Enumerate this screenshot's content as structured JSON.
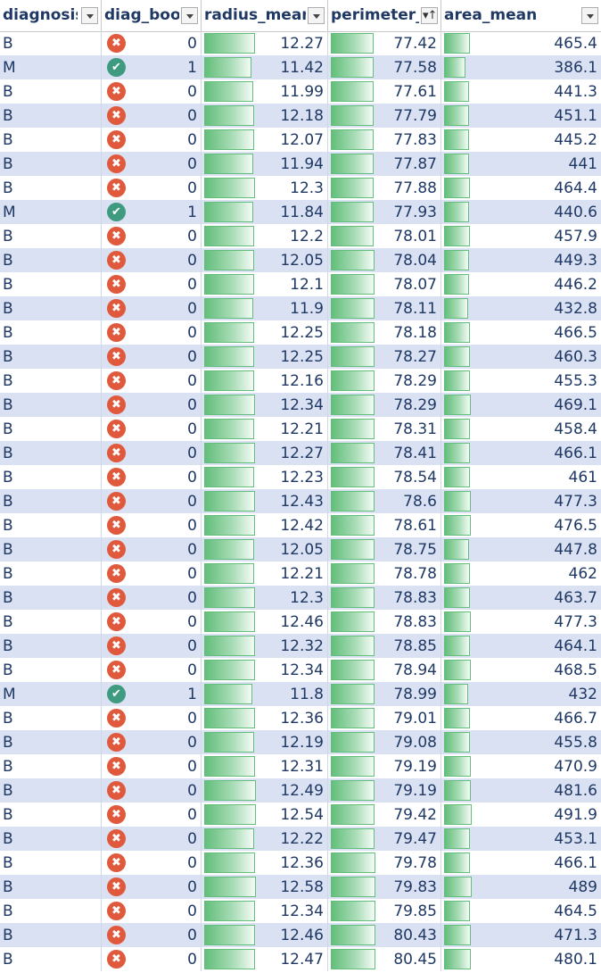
{
  "columns": [
    "diagnosis",
    "diag_boo",
    "radius_mean",
    "perimeter_",
    "area_mean"
  ],
  "sort_column": "perimeter_",
  "colors": {
    "band": "#d9e1f2",
    "text": "#1f3864",
    "false_icon": "#e0593c",
    "true_icon": "#3e9b7f",
    "bar": "#63be7b"
  },
  "icons": {
    "false": "x-circle-icon",
    "true": "check-circle-icon"
  },
  "data_bar_ranges": {
    "radius_mean": [
      0,
      12.58
    ],
    "perimeter_mean": [
      0,
      80.45
    ],
    "area_mean": [
      0,
      491.9
    ]
  },
  "rows": [
    {
      "diagnosis": "B",
      "diag_bool": "0",
      "radius_mean": "12.27",
      "perimeter_mean": "77.42",
      "area_mean": "465.4"
    },
    {
      "diagnosis": "M",
      "diag_bool": "1",
      "radius_mean": "11.42",
      "perimeter_mean": "77.58",
      "area_mean": "386.1"
    },
    {
      "diagnosis": "B",
      "diag_bool": "0",
      "radius_mean": "11.99",
      "perimeter_mean": "77.61",
      "area_mean": "441.3"
    },
    {
      "diagnosis": "B",
      "diag_bool": "0",
      "radius_mean": "12.18",
      "perimeter_mean": "77.79",
      "area_mean": "451.1"
    },
    {
      "diagnosis": "B",
      "diag_bool": "0",
      "radius_mean": "12.07",
      "perimeter_mean": "77.83",
      "area_mean": "445.2"
    },
    {
      "diagnosis": "B",
      "diag_bool": "0",
      "radius_mean": "11.94",
      "perimeter_mean": "77.87",
      "area_mean": "441"
    },
    {
      "diagnosis": "B",
      "diag_bool": "0",
      "radius_mean": "12.3",
      "perimeter_mean": "77.88",
      "area_mean": "464.4"
    },
    {
      "diagnosis": "M",
      "diag_bool": "1",
      "radius_mean": "11.84",
      "perimeter_mean": "77.93",
      "area_mean": "440.6"
    },
    {
      "diagnosis": "B",
      "diag_bool": "0",
      "radius_mean": "12.2",
      "perimeter_mean": "78.01",
      "area_mean": "457.9"
    },
    {
      "diagnosis": "B",
      "diag_bool": "0",
      "radius_mean": "12.05",
      "perimeter_mean": "78.04",
      "area_mean": "449.3"
    },
    {
      "diagnosis": "B",
      "diag_bool": "0",
      "radius_mean": "12.1",
      "perimeter_mean": "78.07",
      "area_mean": "446.2"
    },
    {
      "diagnosis": "B",
      "diag_bool": "0",
      "radius_mean": "11.9",
      "perimeter_mean": "78.11",
      "area_mean": "432.8"
    },
    {
      "diagnosis": "B",
      "diag_bool": "0",
      "radius_mean": "12.25",
      "perimeter_mean": "78.18",
      "area_mean": "466.5"
    },
    {
      "diagnosis": "B",
      "diag_bool": "0",
      "radius_mean": "12.25",
      "perimeter_mean": "78.27",
      "area_mean": "460.3"
    },
    {
      "diagnosis": "B",
      "diag_bool": "0",
      "radius_mean": "12.16",
      "perimeter_mean": "78.29",
      "area_mean": "455.3"
    },
    {
      "diagnosis": "B",
      "diag_bool": "0",
      "radius_mean": "12.34",
      "perimeter_mean": "78.29",
      "area_mean": "469.1"
    },
    {
      "diagnosis": "B",
      "diag_bool": "0",
      "radius_mean": "12.21",
      "perimeter_mean": "78.31",
      "area_mean": "458.4"
    },
    {
      "diagnosis": "B",
      "diag_bool": "0",
      "radius_mean": "12.27",
      "perimeter_mean": "78.41",
      "area_mean": "466.1"
    },
    {
      "diagnosis": "B",
      "diag_bool": "0",
      "radius_mean": "12.23",
      "perimeter_mean": "78.54",
      "area_mean": "461"
    },
    {
      "diagnosis": "B",
      "diag_bool": "0",
      "radius_mean": "12.43",
      "perimeter_mean": "78.6",
      "area_mean": "477.3"
    },
    {
      "diagnosis": "B",
      "diag_bool": "0",
      "radius_mean": "12.42",
      "perimeter_mean": "78.61",
      "area_mean": "476.5"
    },
    {
      "diagnosis": "B",
      "diag_bool": "0",
      "radius_mean": "12.05",
      "perimeter_mean": "78.75",
      "area_mean": "447.8"
    },
    {
      "diagnosis": "B",
      "diag_bool": "0",
      "radius_mean": "12.21",
      "perimeter_mean": "78.78",
      "area_mean": "462"
    },
    {
      "diagnosis": "B",
      "diag_bool": "0",
      "radius_mean": "12.3",
      "perimeter_mean": "78.83",
      "area_mean": "463.7"
    },
    {
      "diagnosis": "B",
      "diag_bool": "0",
      "radius_mean": "12.46",
      "perimeter_mean": "78.83",
      "area_mean": "477.3"
    },
    {
      "diagnosis": "B",
      "diag_bool": "0",
      "radius_mean": "12.32",
      "perimeter_mean": "78.85",
      "area_mean": "464.1"
    },
    {
      "diagnosis": "B",
      "diag_bool": "0",
      "radius_mean": "12.34",
      "perimeter_mean": "78.94",
      "area_mean": "468.5"
    },
    {
      "diagnosis": "M",
      "diag_bool": "1",
      "radius_mean": "11.8",
      "perimeter_mean": "78.99",
      "area_mean": "432"
    },
    {
      "diagnosis": "B",
      "diag_bool": "0",
      "radius_mean": "12.36",
      "perimeter_mean": "79.01",
      "area_mean": "466.7"
    },
    {
      "diagnosis": "B",
      "diag_bool": "0",
      "radius_mean": "12.19",
      "perimeter_mean": "79.08",
      "area_mean": "455.8"
    },
    {
      "diagnosis": "B",
      "diag_bool": "0",
      "radius_mean": "12.31",
      "perimeter_mean": "79.19",
      "area_mean": "470.9"
    },
    {
      "diagnosis": "B",
      "diag_bool": "0",
      "radius_mean": "12.49",
      "perimeter_mean": "79.19",
      "area_mean": "481.6"
    },
    {
      "diagnosis": "B",
      "diag_bool": "0",
      "radius_mean": "12.54",
      "perimeter_mean": "79.42",
      "area_mean": "491.9"
    },
    {
      "diagnosis": "B",
      "diag_bool": "0",
      "radius_mean": "12.22",
      "perimeter_mean": "79.47",
      "area_mean": "453.1"
    },
    {
      "diagnosis": "B",
      "diag_bool": "0",
      "radius_mean": "12.36",
      "perimeter_mean": "79.78",
      "area_mean": "466.1"
    },
    {
      "diagnosis": "B",
      "diag_bool": "0",
      "radius_mean": "12.58",
      "perimeter_mean": "79.83",
      "area_mean": "489"
    },
    {
      "diagnosis": "B",
      "diag_bool": "0",
      "radius_mean": "12.34",
      "perimeter_mean": "79.85",
      "area_mean": "464.5"
    },
    {
      "diagnosis": "B",
      "diag_bool": "0",
      "radius_mean": "12.46",
      "perimeter_mean": "80.43",
      "area_mean": "471.3"
    },
    {
      "diagnosis": "B",
      "diag_bool": "0",
      "radius_mean": "12.47",
      "perimeter_mean": "80.45",
      "area_mean": "480.1"
    }
  ]
}
